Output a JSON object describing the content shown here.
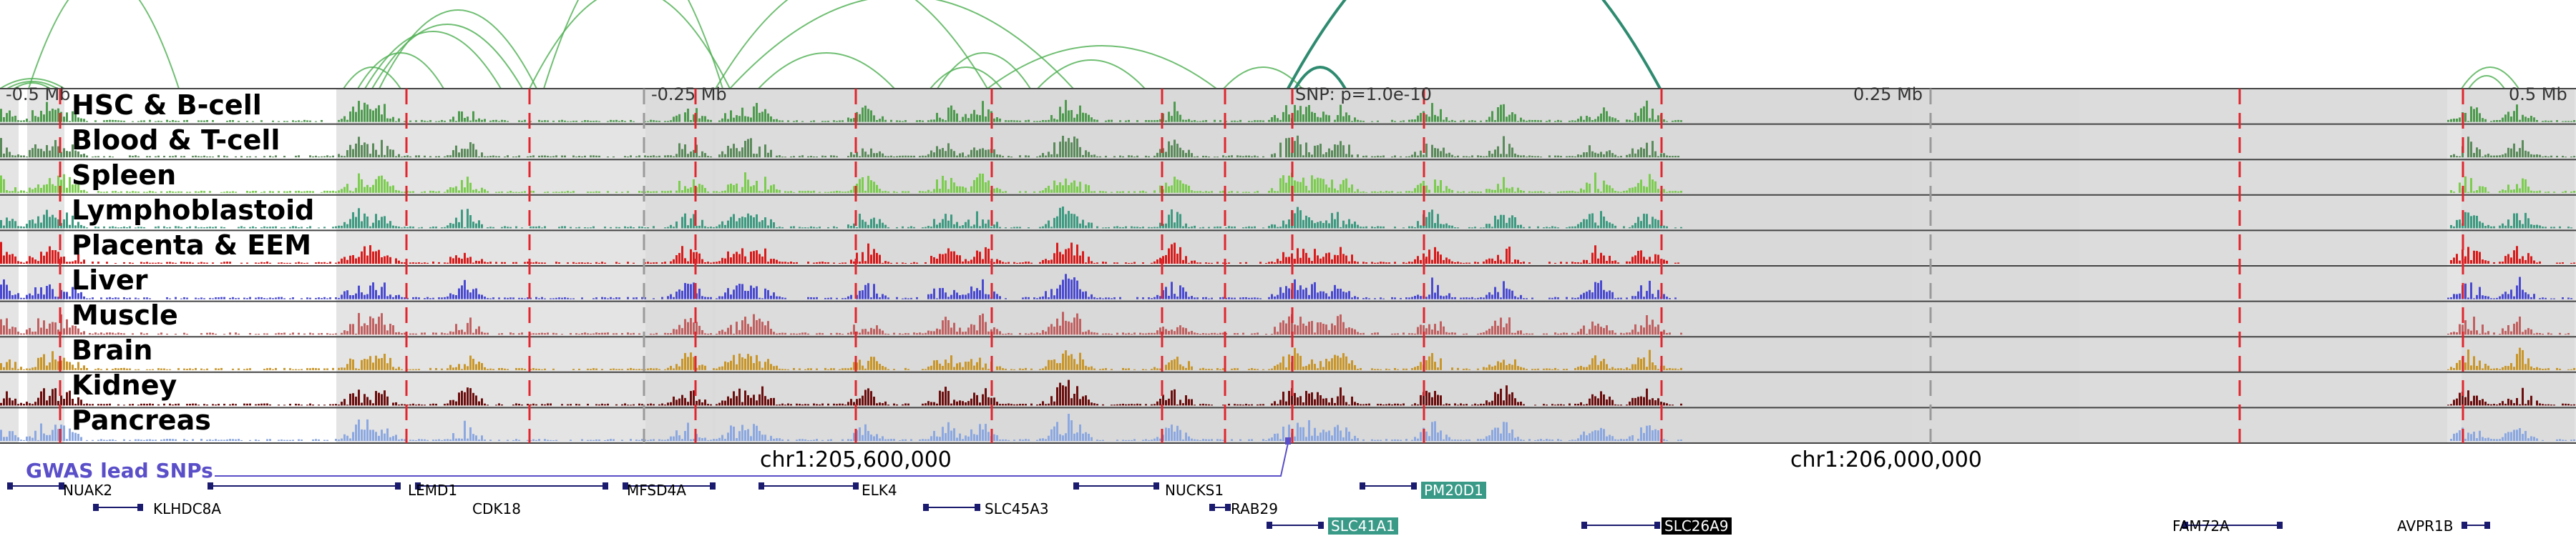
{
  "colors": {
    "highlight_band": "#d9d9d9",
    "dashed_red": "#e0262e",
    "dashed_gray": "#9a9a9a",
    "gwas": "#5a4fc8",
    "arc_light": "#4caf50",
    "arc_dark": "#2e8b6f",
    "gene_navy": "#1a1a6e",
    "box_teal": "#3a9a88"
  },
  "distance_labels": [
    "-0.5 Mb",
    "-0.25 Mb",
    "0.25 Mb",
    "0.5 Mb"
  ],
  "snp_label": "SNP: p=1.0e-10",
  "tracks": [
    {
      "label": "HSC & B-cell",
      "color": "#4e9a4e"
    },
    {
      "label": "Blood & T-cell",
      "color": "#5b8a5b"
    },
    {
      "label": "Spleen",
      "color": "#7ccc50"
    },
    {
      "label": "Lymphoblastoid",
      "color": "#3e9a80"
    },
    {
      "label": "Placenta & EEM",
      "color": "#d81c1c"
    },
    {
      "label": "Liver",
      "color": "#4a4ad0"
    },
    {
      "label": "Muscle",
      "color": "#c06060"
    },
    {
      "label": "Brain",
      "color": "#c8962a"
    },
    {
      "label": "Kidney",
      "color": "#6b0e0e"
    },
    {
      "label": "Pancreas",
      "color": "#8ca8e0"
    }
  ],
  "coordinates": [
    "chr1:205,600,000",
    "chr1:206,000,000"
  ],
  "gwas_label": "GWAS lead SNPs",
  "genes": [
    {
      "name": "NUAK2",
      "boxed": false
    },
    {
      "name": "LEMD1",
      "boxed": false
    },
    {
      "name": "MFSD4A",
      "boxed": false
    },
    {
      "name": "ELK4",
      "boxed": false
    },
    {
      "name": "NUCKS1",
      "boxed": false
    },
    {
      "name": "PM20D1",
      "boxed": true
    },
    {
      "name": "KLHDC8A",
      "boxed": false
    },
    {
      "name": "CDK18",
      "boxed": false
    },
    {
      "name": "SLC45A3",
      "boxed": false
    },
    {
      "name": "RAB29",
      "boxed": false
    },
    {
      "name": "SLC41A1",
      "boxed": true
    },
    {
      "name": "SLC26A9",
      "boxed": true
    },
    {
      "name": "FAM72A",
      "boxed": false
    },
    {
      "name": "AVPR1B",
      "boxed": false
    }
  ]
}
